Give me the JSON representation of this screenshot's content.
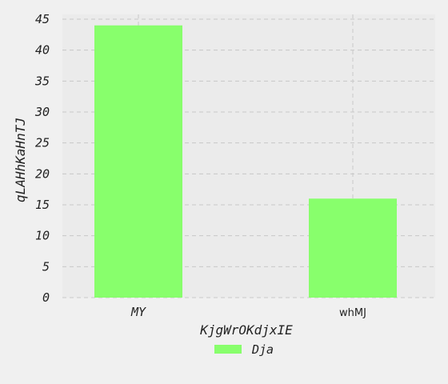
{
  "chart_data": {
    "type": "bar",
    "categories": [
      "MY",
      "whMJ"
    ],
    "series": [
      {
        "name": "Dja",
        "values": [
          44,
          16
        ]
      }
    ],
    "xlabel": "KjgWrOKdjxIE",
    "ylabel": "qLAHhKaHnTJ",
    "ylim": [
      0,
      45
    ],
    "yticks": [
      0,
      5,
      10,
      15,
      20,
      25,
      30,
      35,
      40,
      45
    ],
    "grid": true,
    "legend_position": "bottom-center",
    "colors": {
      "bar": "#88ff6c",
      "plot_background": "#ebebeb",
      "page_background": "#f0f0f0",
      "grid": "#c8c8c8"
    }
  }
}
